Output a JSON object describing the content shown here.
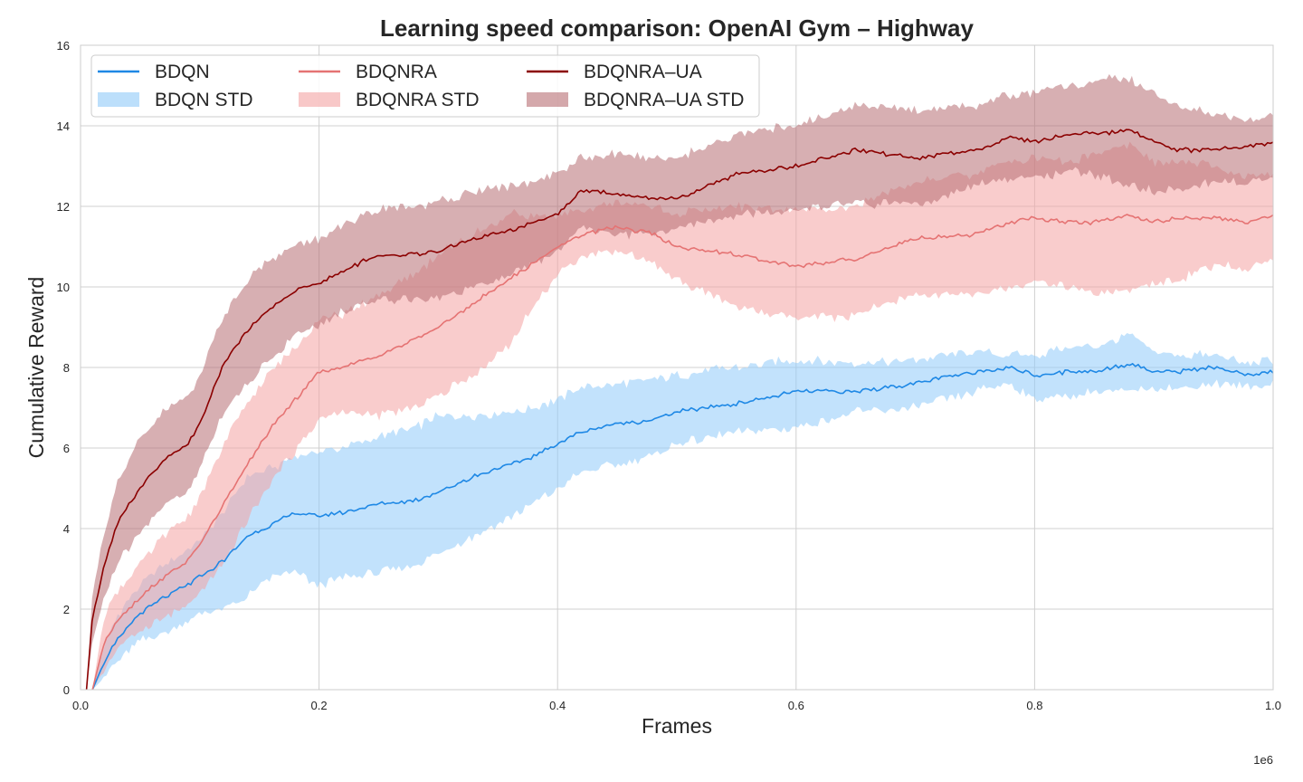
{
  "chart_data": {
    "type": "line",
    "title": "Learning speed comparison: OpenAI Gym – Highway",
    "xlabel": "Frames",
    "ylabel": "Cumulative Reward",
    "x_offset_label": "1e6",
    "xlim": [
      0,
      1.0
    ],
    "ylim": [
      0,
      16
    ],
    "x_ticks": [
      0.0,
      0.2,
      0.4,
      0.6,
      0.8,
      1.0
    ],
    "x_tick_labels": [
      "0.0",
      "0.2",
      "0.4",
      "0.6",
      "0.8",
      "1.0"
    ],
    "y_ticks": [
      0,
      2,
      4,
      6,
      8,
      10,
      12,
      14,
      16
    ],
    "y_tick_labels": [
      "0",
      "2",
      "4",
      "6",
      "8",
      "10",
      "12",
      "14",
      "16"
    ],
    "grid": true,
    "legend_location": "top-left",
    "legend": [
      {
        "label": "BDQN",
        "kind": "line",
        "series": "bdqn"
      },
      {
        "label": "BDQN STD",
        "kind": "band",
        "series": "bdqn"
      },
      {
        "label": "BDQNRA",
        "kind": "line",
        "series": "bdqnra"
      },
      {
        "label": "BDQNRA STD",
        "kind": "band",
        "series": "bdqnra"
      },
      {
        "label": "BDQNRA–UA",
        "kind": "line",
        "series": "bdqnra_ua"
      },
      {
        "label": "BDQNRA–UA STD",
        "kind": "band",
        "series": "bdqnra_ua"
      }
    ],
    "series": [
      {
        "id": "bdqn",
        "name": "BDQN",
        "line_color": "#1e88e5",
        "band_color": "#90caf9",
        "x": [
          0.01,
          0.02,
          0.03,
          0.05,
          0.07,
          0.09,
          0.1,
          0.12,
          0.14,
          0.16,
          0.18,
          0.2,
          0.22,
          0.25,
          0.28,
          0.3,
          0.33,
          0.36,
          0.38,
          0.4,
          0.42,
          0.45,
          0.48,
          0.5,
          0.55,
          0.6,
          0.65,
          0.7,
          0.75,
          0.78,
          0.8,
          0.83,
          0.85,
          0.88,
          0.9,
          0.92,
          0.95,
          0.98,
          1.0
        ],
        "mean": [
          0.0,
          0.7,
          1.2,
          1.9,
          2.3,
          2.6,
          2.8,
          3.2,
          3.8,
          4.1,
          4.4,
          4.3,
          4.4,
          4.6,
          4.7,
          4.9,
          5.3,
          5.6,
          5.8,
          6.1,
          6.4,
          6.6,
          6.7,
          6.9,
          7.1,
          7.4,
          7.4,
          7.6,
          7.9,
          8.0,
          7.8,
          7.9,
          7.9,
          8.1,
          7.9,
          7.9,
          8.0,
          7.8,
          7.9
        ],
        "lower": [
          0.0,
          0.3,
          0.7,
          1.2,
          1.4,
          1.7,
          1.9,
          2.0,
          2.3,
          2.8,
          2.9,
          2.6,
          2.8,
          2.9,
          3.1,
          3.4,
          3.8,
          4.3,
          4.6,
          5.0,
          5.4,
          5.6,
          5.8,
          6.1,
          6.4,
          6.5,
          6.9,
          7.0,
          7.4,
          7.6,
          7.2,
          7.3,
          7.4,
          7.4,
          7.5,
          7.5,
          7.6,
          7.5,
          7.6
        ],
        "upper": [
          0.0,
          1.1,
          1.8,
          2.6,
          3.1,
          3.5,
          3.7,
          4.4,
          5.3,
          5.5,
          5.8,
          5.9,
          6.0,
          6.3,
          6.5,
          6.8,
          6.8,
          6.9,
          7.0,
          7.2,
          7.5,
          7.6,
          7.7,
          7.8,
          8.0,
          8.2,
          8.1,
          8.2,
          8.4,
          8.3,
          8.3,
          8.5,
          8.5,
          8.8,
          8.4,
          8.3,
          8.3,
          8.1,
          8.2
        ]
      },
      {
        "id": "bdqnra",
        "name": "BDQNRA",
        "line_color": "#e57373",
        "band_color": "#f4a3a3",
        "x": [
          0.01,
          0.02,
          0.03,
          0.05,
          0.07,
          0.09,
          0.1,
          0.12,
          0.14,
          0.16,
          0.18,
          0.2,
          0.22,
          0.25,
          0.28,
          0.3,
          0.33,
          0.36,
          0.38,
          0.4,
          0.42,
          0.45,
          0.48,
          0.5,
          0.55,
          0.6,
          0.65,
          0.7,
          0.75,
          0.78,
          0.8,
          0.83,
          0.85,
          0.88,
          0.9,
          0.92,
          0.95,
          0.98,
          1.0
        ],
        "mean": [
          0.0,
          1.2,
          1.7,
          2.3,
          2.8,
          3.2,
          3.6,
          4.6,
          5.6,
          6.5,
          7.2,
          7.9,
          8.0,
          8.3,
          8.7,
          9.0,
          9.6,
          10.2,
          10.6,
          11.0,
          11.3,
          11.5,
          11.3,
          11.0,
          10.8,
          10.5,
          10.7,
          11.2,
          11.3,
          11.6,
          11.7,
          11.6,
          11.6,
          11.8,
          11.6,
          11.7,
          11.7,
          11.6,
          11.8
        ],
        "lower": [
          0.0,
          0.5,
          1.0,
          1.5,
          1.8,
          2.1,
          2.4,
          3.1,
          4.2,
          5.2,
          5.9,
          6.7,
          6.9,
          6.8,
          7.0,
          7.3,
          7.8,
          8.6,
          9.5,
          10.3,
          10.8,
          10.9,
          10.6,
          10.2,
          9.5,
          9.2,
          9.3,
          9.8,
          9.8,
          10.0,
          10.1,
          10.0,
          9.8,
          9.9,
          10.1,
          10.2,
          10.5,
          10.5,
          10.7
        ],
        "upper": [
          0.0,
          1.9,
          2.4,
          3.1,
          3.8,
          4.3,
          4.8,
          6.1,
          7.1,
          7.9,
          8.5,
          9.2,
          9.3,
          9.8,
          10.3,
          10.8,
          11.3,
          11.8,
          11.8,
          11.7,
          11.9,
          12.1,
          12.0,
          11.8,
          12.0,
          11.9,
          12.0,
          12.6,
          12.8,
          13.1,
          13.2,
          13.1,
          13.3,
          13.5,
          13.1,
          13.1,
          13.0,
          12.7,
          12.8
        ]
      },
      {
        "id": "bdqnra_ua",
        "name": "BDQNRA–UA",
        "line_color": "#8b0000",
        "band_color": "#b76e73",
        "x": [
          0.005,
          0.01,
          0.02,
          0.03,
          0.05,
          0.07,
          0.09,
          0.1,
          0.12,
          0.14,
          0.16,
          0.18,
          0.2,
          0.22,
          0.25,
          0.28,
          0.3,
          0.33,
          0.36,
          0.38,
          0.4,
          0.42,
          0.45,
          0.48,
          0.5,
          0.55,
          0.6,
          0.65,
          0.7,
          0.75,
          0.78,
          0.8,
          0.83,
          0.85,
          0.88,
          0.9,
          0.92,
          0.95,
          0.98,
          1.0
        ],
        "mean": [
          0.0,
          1.8,
          3.1,
          4.1,
          5.0,
          5.7,
          6.1,
          6.6,
          8.1,
          8.9,
          9.5,
          9.9,
          10.1,
          10.4,
          10.8,
          10.8,
          10.9,
          11.2,
          11.4,
          11.6,
          11.8,
          12.4,
          12.3,
          12.2,
          12.2,
          12.8,
          13.0,
          13.4,
          13.2,
          13.4,
          13.7,
          13.6,
          13.8,
          13.8,
          13.9,
          13.6,
          13.4,
          13.4,
          13.5,
          13.6
        ],
        "lower": [
          0.0,
          1.2,
          2.3,
          3.1,
          3.9,
          4.6,
          4.9,
          5.5,
          6.9,
          7.6,
          8.2,
          8.8,
          9.0,
          9.4,
          9.7,
          9.7,
          9.7,
          10.0,
          10.3,
          10.6,
          10.9,
          11.5,
          11.3,
          11.3,
          11.5,
          11.8,
          11.9,
          12.1,
          12.0,
          12.5,
          12.7,
          12.7,
          12.9,
          12.8,
          12.5,
          12.4,
          12.4,
          12.6,
          12.6,
          12.8
        ],
        "upper": [
          0.0,
          2.4,
          3.9,
          5.1,
          6.2,
          6.9,
          7.3,
          7.8,
          9.3,
          10.2,
          10.7,
          11.0,
          11.2,
          11.5,
          11.9,
          12.0,
          12.1,
          12.4,
          12.5,
          12.6,
          12.8,
          13.2,
          13.3,
          13.2,
          13.2,
          13.8,
          14.0,
          14.5,
          14.4,
          14.5,
          14.8,
          14.8,
          15.0,
          15.1,
          15.2,
          14.8,
          14.5,
          14.3,
          14.1,
          14.3
        ]
      }
    ]
  }
}
